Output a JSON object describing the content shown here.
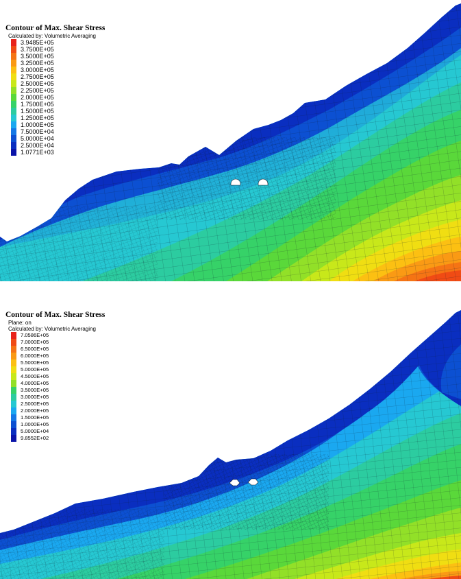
{
  "plots": [
    {
      "title": "Contour of Max. Shear Stress",
      "plane": "",
      "method": "Calculated by: Volumetric Averaging",
      "legend_values": [
        "3.9485E+05",
        "3.7500E+05",
        "3.5000E+05",
        "3.2500E+05",
        "3.0000E+05",
        "2.7500E+05",
        "2.5000E+05",
        "2.2500E+05",
        "2.0000E+05",
        "1.7500E+05",
        "1.5000E+05",
        "1.2500E+05",
        "1.0000E+05",
        "7.5000E+04",
        "5.0000E+04",
        "2.5000E+04",
        "1.0771E+03"
      ]
    },
    {
      "title": "Contour of Max. Shear Stress",
      "plane": "Plane: on",
      "method": "Calculated by: Volumetric Averaging",
      "legend_values": [
        "7.0586E+05",
        "7.0000E+05",
        "6.5000E+05",
        "6.0000E+05",
        "5.5000E+05",
        "5.0000E+05",
        "4.5000E+05",
        "4.0000E+05",
        "3.5000E+05",
        "3.0000E+05",
        "2.5000E+05",
        "2.0000E+05",
        "1.5000E+05",
        "1.0000E+05",
        "5.0000E+04",
        "9.8552E+02"
      ]
    }
  ],
  "colors": {
    "scale_high_to_low": [
      "#e8231a",
      "#f04b14",
      "#f57414",
      "#fa9a14",
      "#fcc012",
      "#f0de12",
      "#c8e81a",
      "#92e028",
      "#5ad83a",
      "#36d268",
      "#2ccca0",
      "#26c8d2",
      "#1aa8f0",
      "#1478e6",
      "#0c50d2",
      "#0a2ec0",
      "#0a14a8"
    ]
  }
}
